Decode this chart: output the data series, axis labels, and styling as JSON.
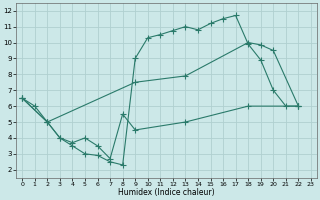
{
  "bg_color": "#cce8e8",
  "grid_color": "#b0d0d0",
  "line_color": "#2a7a6a",
  "xlabel": "Humidex (Indice chaleur)",
  "xlim": [
    -0.5,
    23.5
  ],
  "ylim": [
    1.5,
    12.5
  ],
  "xticks": [
    0,
    1,
    2,
    3,
    4,
    5,
    6,
    7,
    8,
    9,
    10,
    11,
    12,
    13,
    14,
    15,
    16,
    17,
    18,
    19,
    20,
    21,
    22,
    23
  ],
  "yticks": [
    2,
    3,
    4,
    5,
    6,
    7,
    8,
    9,
    10,
    11,
    12
  ],
  "line1_x": [
    0,
    1,
    2,
    3,
    4,
    5,
    6,
    7,
    8,
    9,
    10,
    11,
    12,
    13,
    14,
    15,
    16,
    17,
    18,
    19,
    20,
    21,
    22
  ],
  "line1_y": [
    6.5,
    6.0,
    5.0,
    4.0,
    3.5,
    3.0,
    2.9,
    2.5,
    2.3,
    9.0,
    10.3,
    10.5,
    10.75,
    11.0,
    10.8,
    11.2,
    11.5,
    11.7,
    9.9,
    8.9,
    7.0,
    6.0,
    6.0
  ],
  "line2_x": [
    0,
    2,
    9,
    13,
    18,
    19,
    20,
    22
  ],
  "line2_y": [
    6.5,
    5.0,
    7.5,
    7.9,
    10.0,
    9.85,
    9.5,
    6.0
  ],
  "line3_x": [
    0,
    2,
    3,
    4,
    5,
    6,
    7,
    8,
    9,
    13,
    18,
    22
  ],
  "line3_y": [
    6.5,
    5.0,
    4.0,
    3.7,
    4.0,
    3.5,
    2.7,
    5.5,
    4.5,
    5.0,
    6.0,
    6.0
  ]
}
